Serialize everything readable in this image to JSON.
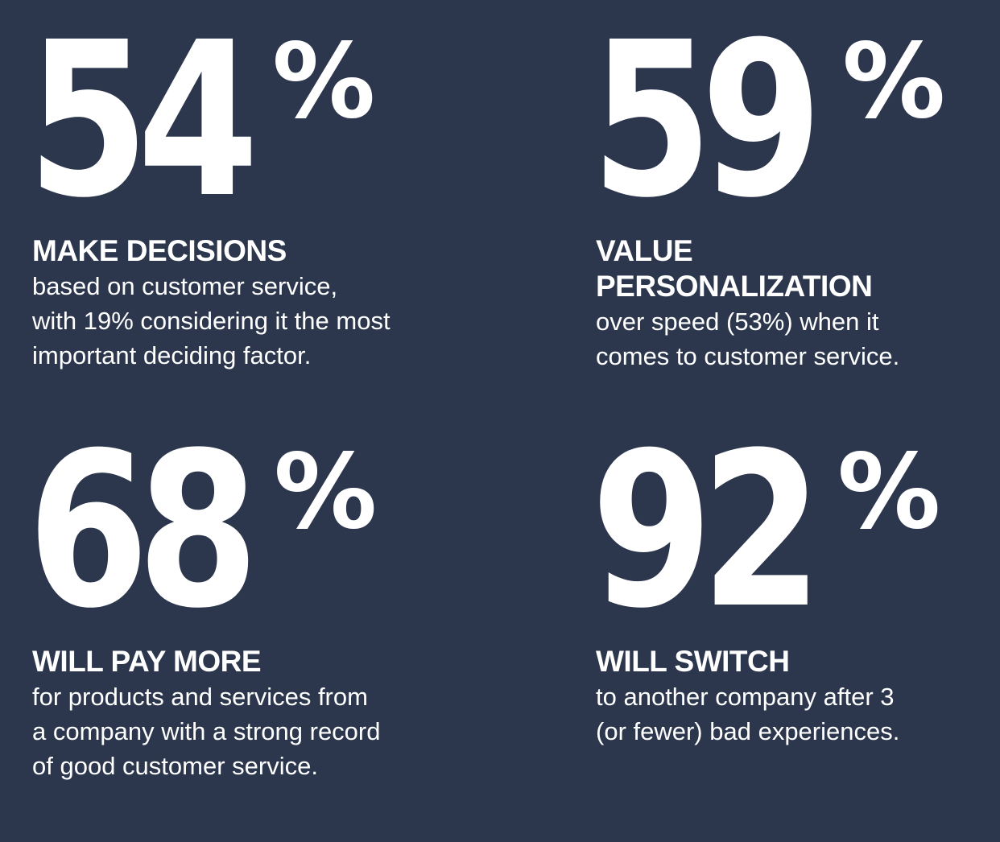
{
  "stats": [
    {
      "number": "54",
      "percent_sign": "%",
      "headline": "MAKE DECISIONS",
      "lines": [
        "based on customer service,",
        "with 19% considering it the most",
        "important deciding factor."
      ]
    },
    {
      "number": "59",
      "percent_sign": "%",
      "headline_lines": [
        "VALUE",
        "PERSONALIZATION"
      ],
      "lines": [
        "over speed (53%) when it",
        "comes to customer service."
      ]
    },
    {
      "number": "68",
      "percent_sign": "%",
      "headline": "WILL PAY MORE",
      "lines": [
        "for products and services from",
        "a company with a strong record",
        "of good customer service."
      ]
    },
    {
      "number": "92",
      "percent_sign": "%",
      "headline": "WILL SWITCH",
      "lines": [
        "to another company after 3",
        "(or fewer) bad experiences."
      ]
    }
  ]
}
